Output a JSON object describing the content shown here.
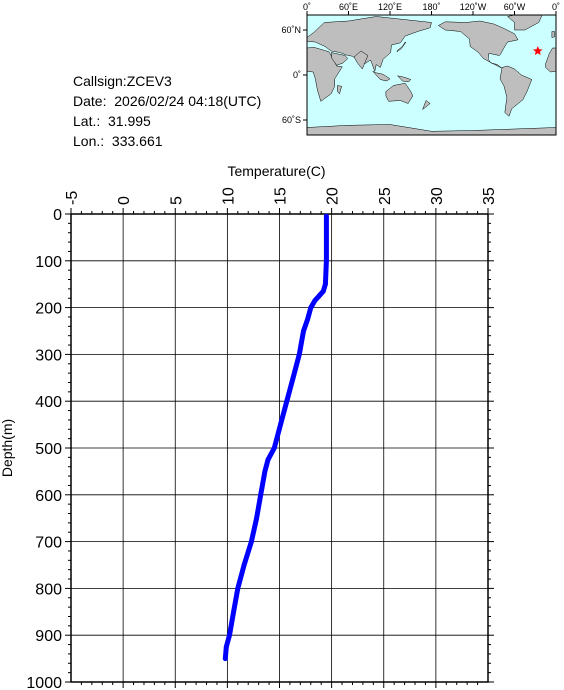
{
  "info": {
    "callsign": "Callsign:ZCEV3",
    "date": "Date:  2026/02/24 04:18(UTC)",
    "lat": "Lat.:  31.995",
    "lon": "Lon.:  333.661"
  },
  "map": {
    "lon_labels": [
      "0˚",
      "60˚E",
      "120˚E",
      "180˚",
      "120˚W",
      "60˚W",
      "0˚"
    ],
    "lat_labels": [
      "60˚N",
      "0˚",
      "60˚S"
    ],
    "ocean_color": "#ccffff",
    "land_color": "#bebebe",
    "marker": {
      "lon": 333.661,
      "lat": 31.995,
      "color": "#ff0000",
      "symbol": "star"
    }
  },
  "chart_data": {
    "type": "line",
    "title": "",
    "xlabel": "Temperature(C)",
    "ylabel": "Depth(m)",
    "xlim": [
      -5,
      35
    ],
    "ylim": [
      1000,
      0
    ],
    "x_ticks": [
      -5,
      0,
      5,
      10,
      15,
      20,
      25,
      30,
      35
    ],
    "y_ticks": [
      0,
      100,
      200,
      300,
      400,
      500,
      600,
      700,
      800,
      900,
      1000
    ],
    "grid": true,
    "series": [
      {
        "color": "#0000ff",
        "points": [
          [
            19.5,
            5
          ],
          [
            19.5,
            50
          ],
          [
            19.5,
            100
          ],
          [
            19.4,
            150
          ],
          [
            19.2,
            165
          ],
          [
            18.8,
            175
          ],
          [
            18.4,
            185
          ],
          [
            18.0,
            200
          ],
          [
            17.7,
            225
          ],
          [
            17.3,
            250
          ],
          [
            16.9,
            300
          ],
          [
            16.3,
            350
          ],
          [
            15.7,
            400
          ],
          [
            15.1,
            450
          ],
          [
            14.5,
            500
          ],
          [
            13.9,
            525
          ],
          [
            13.6,
            550
          ],
          [
            13.2,
            600
          ],
          [
            12.8,
            650
          ],
          [
            12.3,
            700
          ],
          [
            11.6,
            750
          ],
          [
            11.0,
            800
          ],
          [
            10.6,
            850
          ],
          [
            10.2,
            900
          ],
          [
            9.9,
            925
          ],
          [
            9.8,
            950
          ]
        ]
      }
    ]
  }
}
